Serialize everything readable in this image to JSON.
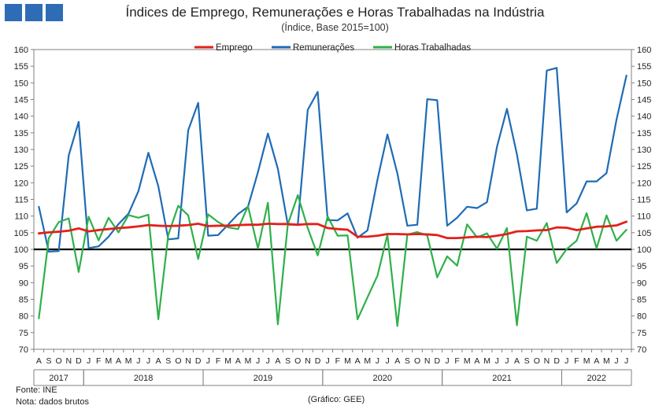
{
  "header": {
    "title": "Índices de Emprego, Remunerações e Horas Trabalhadas na Indústria",
    "subtitle": "(Índice, Base 2015=100)"
  },
  "footer": {
    "source": "Fonte: INE",
    "note": "Nota: dados brutos",
    "credit": "(Gráfico: GEE)"
  },
  "colors": {
    "logo": "#2e6db5",
    "emprego": "#e3201b",
    "remuneracoes": "#1f6bb5",
    "horas": "#2fb04a",
    "baseline": "#000000"
  },
  "chart_data": {
    "type": "line",
    "title": "Índices de Emprego, Remunerações e Horas Trabalhadas na Indústria",
    "subtitle": "(Índice, Base 2015=100)",
    "ylim": [
      70,
      160
    ],
    "y_ticks": [
      70,
      75,
      80,
      85,
      90,
      95,
      100,
      105,
      110,
      115,
      120,
      125,
      130,
      135,
      140,
      145,
      150,
      155,
      160
    ],
    "y_axis_right": true,
    "legend_position": "top-center",
    "grid": false,
    "reference_line": 100,
    "month_labels": [
      "A",
      "S",
      "O",
      "N",
      "D",
      "J",
      "F",
      "M",
      "A",
      "M",
      "J",
      "J",
      "A",
      "S",
      "O",
      "N",
      "D",
      "J",
      "F",
      "M",
      "A",
      "M",
      "J",
      "J",
      "A",
      "S",
      "O",
      "N",
      "D",
      "J",
      "F",
      "M",
      "A",
      "M",
      "J",
      "J",
      "A",
      "S",
      "O",
      "N",
      "D",
      "J",
      "F",
      "M",
      "A",
      "M",
      "J",
      "J",
      "A",
      "S",
      "O",
      "N",
      "D",
      "J",
      "F",
      "M",
      "A",
      "M",
      "J",
      "J"
    ],
    "year_groups": [
      {
        "label": "2017",
        "start": 0,
        "count": 5
      },
      {
        "label": "2018",
        "start": 5,
        "count": 12
      },
      {
        "label": "2019",
        "start": 17,
        "count": 12
      },
      {
        "label": "2020",
        "start": 29,
        "count": 12
      },
      {
        "label": "2021",
        "start": 41,
        "count": 12
      },
      {
        "label": "2022",
        "start": 53,
        "count": 7
      }
    ],
    "series": [
      {
        "name": "Emprego",
        "color": "#e3201b",
        "values": [
          104.8,
          105.1,
          105.3,
          105.6,
          106.3,
          105.4,
          105.8,
          106.1,
          106.4,
          106.6,
          106.9,
          107.3,
          107.1,
          107.0,
          107.1,
          107.3,
          107.7,
          107.0,
          107.1,
          107.1,
          107.3,
          107.4,
          107.4,
          107.7,
          107.6,
          107.6,
          107.4,
          107.6,
          107.6,
          106.4,
          106.1,
          105.9,
          103.8,
          103.8,
          104.1,
          104.6,
          104.6,
          104.5,
          104.6,
          104.5,
          104.3,
          103.4,
          103.4,
          103.6,
          103.8,
          103.7,
          104.1,
          104.6,
          105.4,
          105.5,
          105.7,
          105.8,
          106.6,
          106.5,
          105.8,
          106.3,
          106.8,
          106.9,
          107.2,
          108.3
        ]
      },
      {
        "name": "Remunerações",
        "color": "#1f6bb5",
        "values": [
          112.8,
          99.3,
          99.5,
          128.2,
          138.3,
          100.4,
          100.9,
          103.8,
          107.6,
          110.7,
          117.5,
          129.0,
          118.9,
          103.0,
          103.3,
          135.8,
          144.0,
          104.1,
          104.3,
          107.4,
          110.6,
          112.8,
          123.2,
          134.8,
          124.2,
          107.4,
          107.4,
          141.9,
          147.3,
          108.8,
          108.7,
          110.8,
          103.5,
          105.7,
          120.9,
          134.5,
          122.8,
          107.1,
          107.4,
          145.1,
          144.8,
          107.1,
          109.5,
          112.8,
          112.4,
          114.2,
          130.8,
          142.2,
          128.6,
          111.7,
          112.2,
          153.7,
          154.5,
          111.1,
          113.8,
          120.4,
          120.4,
          122.9,
          138.9,
          152.2
        ]
      },
      {
        "name": "Horas Trabalhadas",
        "color": "#2fb04a",
        "values": [
          79.3,
          103.4,
          108.2,
          109.3,
          93.2,
          109.8,
          102.7,
          109.5,
          105.1,
          110.3,
          109.5,
          110.4,
          79.0,
          104.4,
          113.1,
          110.2,
          97.1,
          110.5,
          108.2,
          106.6,
          106.1,
          113.0,
          100.3,
          114.0,
          77.5,
          107.5,
          116.3,
          106.4,
          98.2,
          109.9,
          104.1,
          104.2,
          79.0,
          85.6,
          92.1,
          104.4,
          77.0,
          104.4,
          105.2,
          104.2,
          91.6,
          97.9,
          95.1,
          107.5,
          103.6,
          104.8,
          100.2,
          106.4,
          77.2,
          103.8,
          102.6,
          107.9,
          95.9,
          100.1,
          102.6,
          110.9,
          100.3,
          110.2,
          102.6,
          105.9
        ]
      }
    ]
  }
}
